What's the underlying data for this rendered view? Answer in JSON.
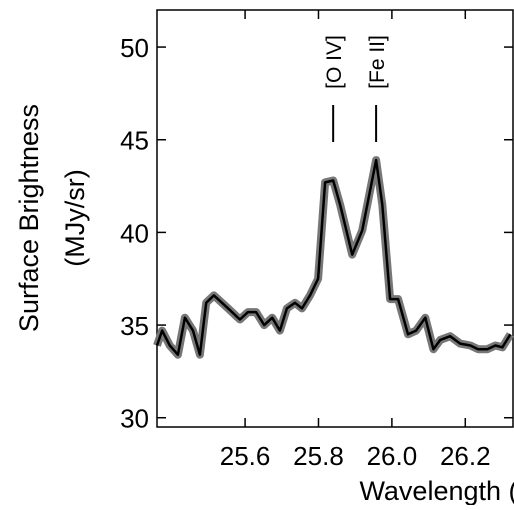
{
  "chart_data": {
    "type": "line",
    "xlabel": "Wavelength (μm)",
    "ylabel": [
      "Surface Brightness",
      "(MJy/sr)"
    ],
    "x": [
      25.36,
      25.374,
      25.395,
      25.417,
      25.436,
      25.458,
      25.477,
      25.494,
      25.515,
      25.537,
      25.559,
      25.586,
      25.608,
      25.63,
      25.652,
      25.674,
      25.695,
      25.714,
      25.736,
      25.755,
      25.777,
      25.799,
      25.818,
      25.84,
      25.859,
      25.892,
      25.919,
      25.957,
      25.974,
      25.995,
      26.017,
      26.044,
      26.066,
      26.091,
      26.113,
      26.132,
      26.159,
      26.186,
      26.214,
      26.235,
      26.26,
      26.282,
      26.301,
      26.323
    ],
    "series": [
      {
        "color": "#000000",
        "values": [
          33.9,
          34.7,
          33.9,
          33.4,
          35.4,
          34.7,
          33.4,
          36.2,
          36.6,
          36.2,
          35.8,
          35.3,
          35.7,
          35.7,
          35.0,
          35.4,
          34.7,
          35.9,
          36.2,
          35.9,
          36.6,
          37.5,
          42.7,
          42.8,
          41.5,
          38.8,
          40.1,
          43.9,
          41.5,
          36.4,
          36.4,
          34.5,
          34.7,
          35.4,
          33.7,
          34.2,
          34.4,
          34.0,
          33.9,
          33.7,
          33.7,
          33.9,
          33.8,
          34.5
        ]
      }
    ],
    "annotations": [
      {
        "text": "[O IV]",
        "x": 25.84
      },
      {
        "text": "[Fe II]",
        "x": 25.957
      }
    ],
    "xlim": [
      25.36,
      26.33
    ],
    "xticks": [
      25.6,
      25.8,
      {
        "value": 26.0,
        "label": "26.0"
      },
      26.2
    ],
    "ylim": [
      29.5,
      52
    ],
    "yticks": [
      30,
      35,
      40,
      45,
      50
    ]
  }
}
